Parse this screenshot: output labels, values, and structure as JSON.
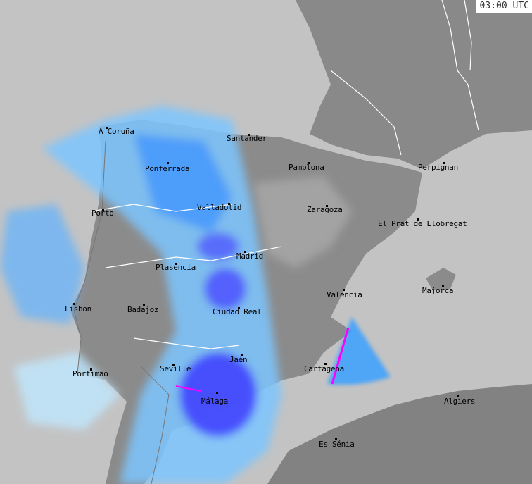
{
  "timestamp": "03:00 UTC",
  "colors": {
    "sea": "#c3c3c3",
    "land": "#8a8a8a",
    "clutter": "#a4a4a4",
    "radar_light": "#bfe8ff",
    "radar_mid": "#3aa0ff",
    "radar_heavy": "#3b3bff",
    "radar_extreme": "#ff00ff",
    "borders": "#ffffff"
  },
  "cities": [
    {
      "name": "A Coruña"
    },
    {
      "name": "Santander"
    },
    {
      "name": "Ponferrada"
    },
    {
      "name": "Pamplona"
    },
    {
      "name": "Perpignan"
    },
    {
      "name": "Porto"
    },
    {
      "name": "Valladolid"
    },
    {
      "name": "Zaragoza"
    },
    {
      "name": "El Prat de Llobregat"
    },
    {
      "name": "Madrid"
    },
    {
      "name": "Plasencia"
    },
    {
      "name": "Majorca"
    },
    {
      "name": "Valencia"
    },
    {
      "name": "Lisbon"
    },
    {
      "name": "Badajoz"
    },
    {
      "name": "Ciudad Real"
    },
    {
      "name": "Jaén"
    },
    {
      "name": "Seville"
    },
    {
      "name": "Portimão"
    },
    {
      "name": "Cartagena"
    },
    {
      "name": "Málaga"
    },
    {
      "name": "Algiers"
    },
    {
      "name": "Es Sénia"
    }
  ]
}
